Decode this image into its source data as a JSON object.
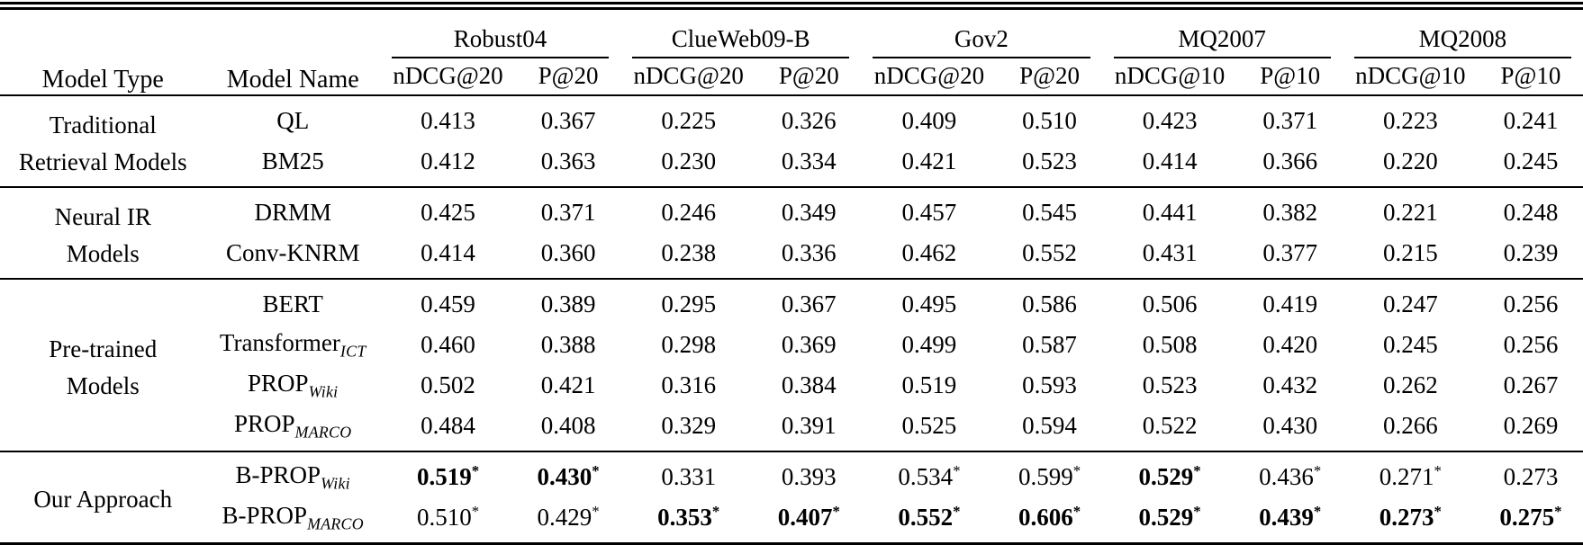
{
  "table": {
    "headers": {
      "model_type": "Model Type",
      "model_name": "Model Name",
      "groups": [
        {
          "label": "Robust04",
          "metric1": "nDCG@20",
          "metric2": "P@20"
        },
        {
          "label": "ClueWeb09-B",
          "metric1": "nDCG@20",
          "metric2": "P@20"
        },
        {
          "label": "Gov2",
          "metric1": "nDCG@20",
          "metric2": "P@20"
        },
        {
          "label": "MQ2007",
          "metric1": "nDCG@10",
          "metric2": "P@10"
        },
        {
          "label": "MQ2008",
          "metric1": "nDCG@10",
          "metric2": "P@10"
        }
      ]
    },
    "significance_marker": "*",
    "row_groups": [
      {
        "type_label": "Traditional\nRetrieval Models",
        "rows": [
          {
            "name": "QL",
            "sub": "",
            "cells": [
              {
                "v": "0.413"
              },
              {
                "v": "0.367"
              },
              {
                "v": "0.225"
              },
              {
                "v": "0.326"
              },
              {
                "v": "0.409"
              },
              {
                "v": "0.510"
              },
              {
                "v": "0.423"
              },
              {
                "v": "0.371"
              },
              {
                "v": "0.223"
              },
              {
                "v": "0.241"
              }
            ]
          },
          {
            "name": "BM25",
            "sub": "",
            "cells": [
              {
                "v": "0.412"
              },
              {
                "v": "0.363"
              },
              {
                "v": "0.230"
              },
              {
                "v": "0.334"
              },
              {
                "v": "0.421"
              },
              {
                "v": "0.523"
              },
              {
                "v": "0.414"
              },
              {
                "v": "0.366"
              },
              {
                "v": "0.220"
              },
              {
                "v": "0.245"
              }
            ]
          }
        ]
      },
      {
        "type_label": "Neural IR\nModels",
        "rows": [
          {
            "name": "DRMM",
            "sub": "",
            "cells": [
              {
                "v": "0.425"
              },
              {
                "v": "0.371"
              },
              {
                "v": "0.246"
              },
              {
                "v": "0.349"
              },
              {
                "v": "0.457"
              },
              {
                "v": "0.545"
              },
              {
                "v": "0.441"
              },
              {
                "v": "0.382"
              },
              {
                "v": "0.221"
              },
              {
                "v": "0.248"
              }
            ]
          },
          {
            "name": "Conv-KNRM",
            "sub": "",
            "cells": [
              {
                "v": "0.414"
              },
              {
                "v": "0.360"
              },
              {
                "v": "0.238"
              },
              {
                "v": "0.336"
              },
              {
                "v": "0.462"
              },
              {
                "v": "0.552"
              },
              {
                "v": "0.431"
              },
              {
                "v": "0.377"
              },
              {
                "v": "0.215"
              },
              {
                "v": "0.239"
              }
            ]
          }
        ]
      },
      {
        "type_label": "Pre-trained\nModels",
        "rows": [
          {
            "name": "BERT",
            "sub": "",
            "cells": [
              {
                "v": "0.459"
              },
              {
                "v": "0.389"
              },
              {
                "v": "0.295"
              },
              {
                "v": "0.367"
              },
              {
                "v": "0.495"
              },
              {
                "v": "0.586"
              },
              {
                "v": "0.506"
              },
              {
                "v": "0.419"
              },
              {
                "v": "0.247"
              },
              {
                "v": "0.256"
              }
            ]
          },
          {
            "name": "Transformer",
            "sub": "ICT",
            "cells": [
              {
                "v": "0.460"
              },
              {
                "v": "0.388"
              },
              {
                "v": "0.298"
              },
              {
                "v": "0.369"
              },
              {
                "v": "0.499"
              },
              {
                "v": "0.587"
              },
              {
                "v": "0.508"
              },
              {
                "v": "0.420"
              },
              {
                "v": "0.245"
              },
              {
                "v": "0.256"
              }
            ]
          },
          {
            "name": "PROP",
            "sub": "Wiki",
            "cells": [
              {
                "v": "0.502"
              },
              {
                "v": "0.421"
              },
              {
                "v": "0.316"
              },
              {
                "v": "0.384"
              },
              {
                "v": "0.519"
              },
              {
                "v": "0.593"
              },
              {
                "v": "0.523"
              },
              {
                "v": "0.432"
              },
              {
                "v": "0.262"
              },
              {
                "v": "0.267"
              }
            ]
          },
          {
            "name": "PROP",
            "sub": "MARCO",
            "cells": [
              {
                "v": "0.484"
              },
              {
                "v": "0.408"
              },
              {
                "v": "0.329"
              },
              {
                "v": "0.391"
              },
              {
                "v": "0.525"
              },
              {
                "v": "0.594"
              },
              {
                "v": "0.522"
              },
              {
                "v": "0.430"
              },
              {
                "v": "0.266"
              },
              {
                "v": "0.269"
              }
            ]
          }
        ]
      },
      {
        "type_label": "Our Approach",
        "rows": [
          {
            "name": "B-PROP",
            "sub": "Wiki",
            "cells": [
              {
                "v": "0.519",
                "star": true,
                "bold": true
              },
              {
                "v": "0.430",
                "star": true,
                "bold": true
              },
              {
                "v": "0.331"
              },
              {
                "v": "0.393"
              },
              {
                "v": "0.534",
                "star": true
              },
              {
                "v": "0.599",
                "star": true
              },
              {
                "v": "0.529",
                "star": true,
                "bold": true
              },
              {
                "v": "0.436",
                "star": true
              },
              {
                "v": "0.271",
                "star": true
              },
              {
                "v": "0.273"
              }
            ]
          },
          {
            "name": "B-PROP",
            "sub": "MARCO",
            "cells": [
              {
                "v": "0.510",
                "star": true
              },
              {
                "v": "0.429",
                "star": true
              },
              {
                "v": "0.353",
                "star": true,
                "bold": true
              },
              {
                "v": "0.407",
                "star": true,
                "bold": true
              },
              {
                "v": "0.552",
                "star": true,
                "bold": true
              },
              {
                "v": "0.606",
                "star": true,
                "bold": true
              },
              {
                "v": "0.529",
                "star": true,
                "bold": true
              },
              {
                "v": "0.439",
                "star": true,
                "bold": true
              },
              {
                "v": "0.273",
                "star": true,
                "bold": true
              },
              {
                "v": "0.275",
                "star": true,
                "bold": true
              }
            ]
          }
        ]
      }
    ]
  }
}
